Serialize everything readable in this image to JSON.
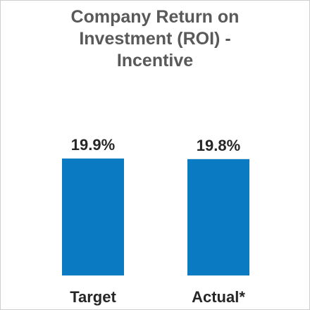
{
  "chart_data": {
    "type": "bar",
    "title_lines": [
      "Company Return on",
      "Investment  (ROI) -",
      "Incentive"
    ],
    "categories": [
      "Target",
      "Actual*"
    ],
    "values": [
      19.9,
      19.8
    ],
    "data_labels": [
      "19.9%",
      "19.8%"
    ],
    "bar_color": "#0A7BC2",
    "ylim": [
      0,
      19.9
    ],
    "grid": false,
    "legend": "none"
  }
}
